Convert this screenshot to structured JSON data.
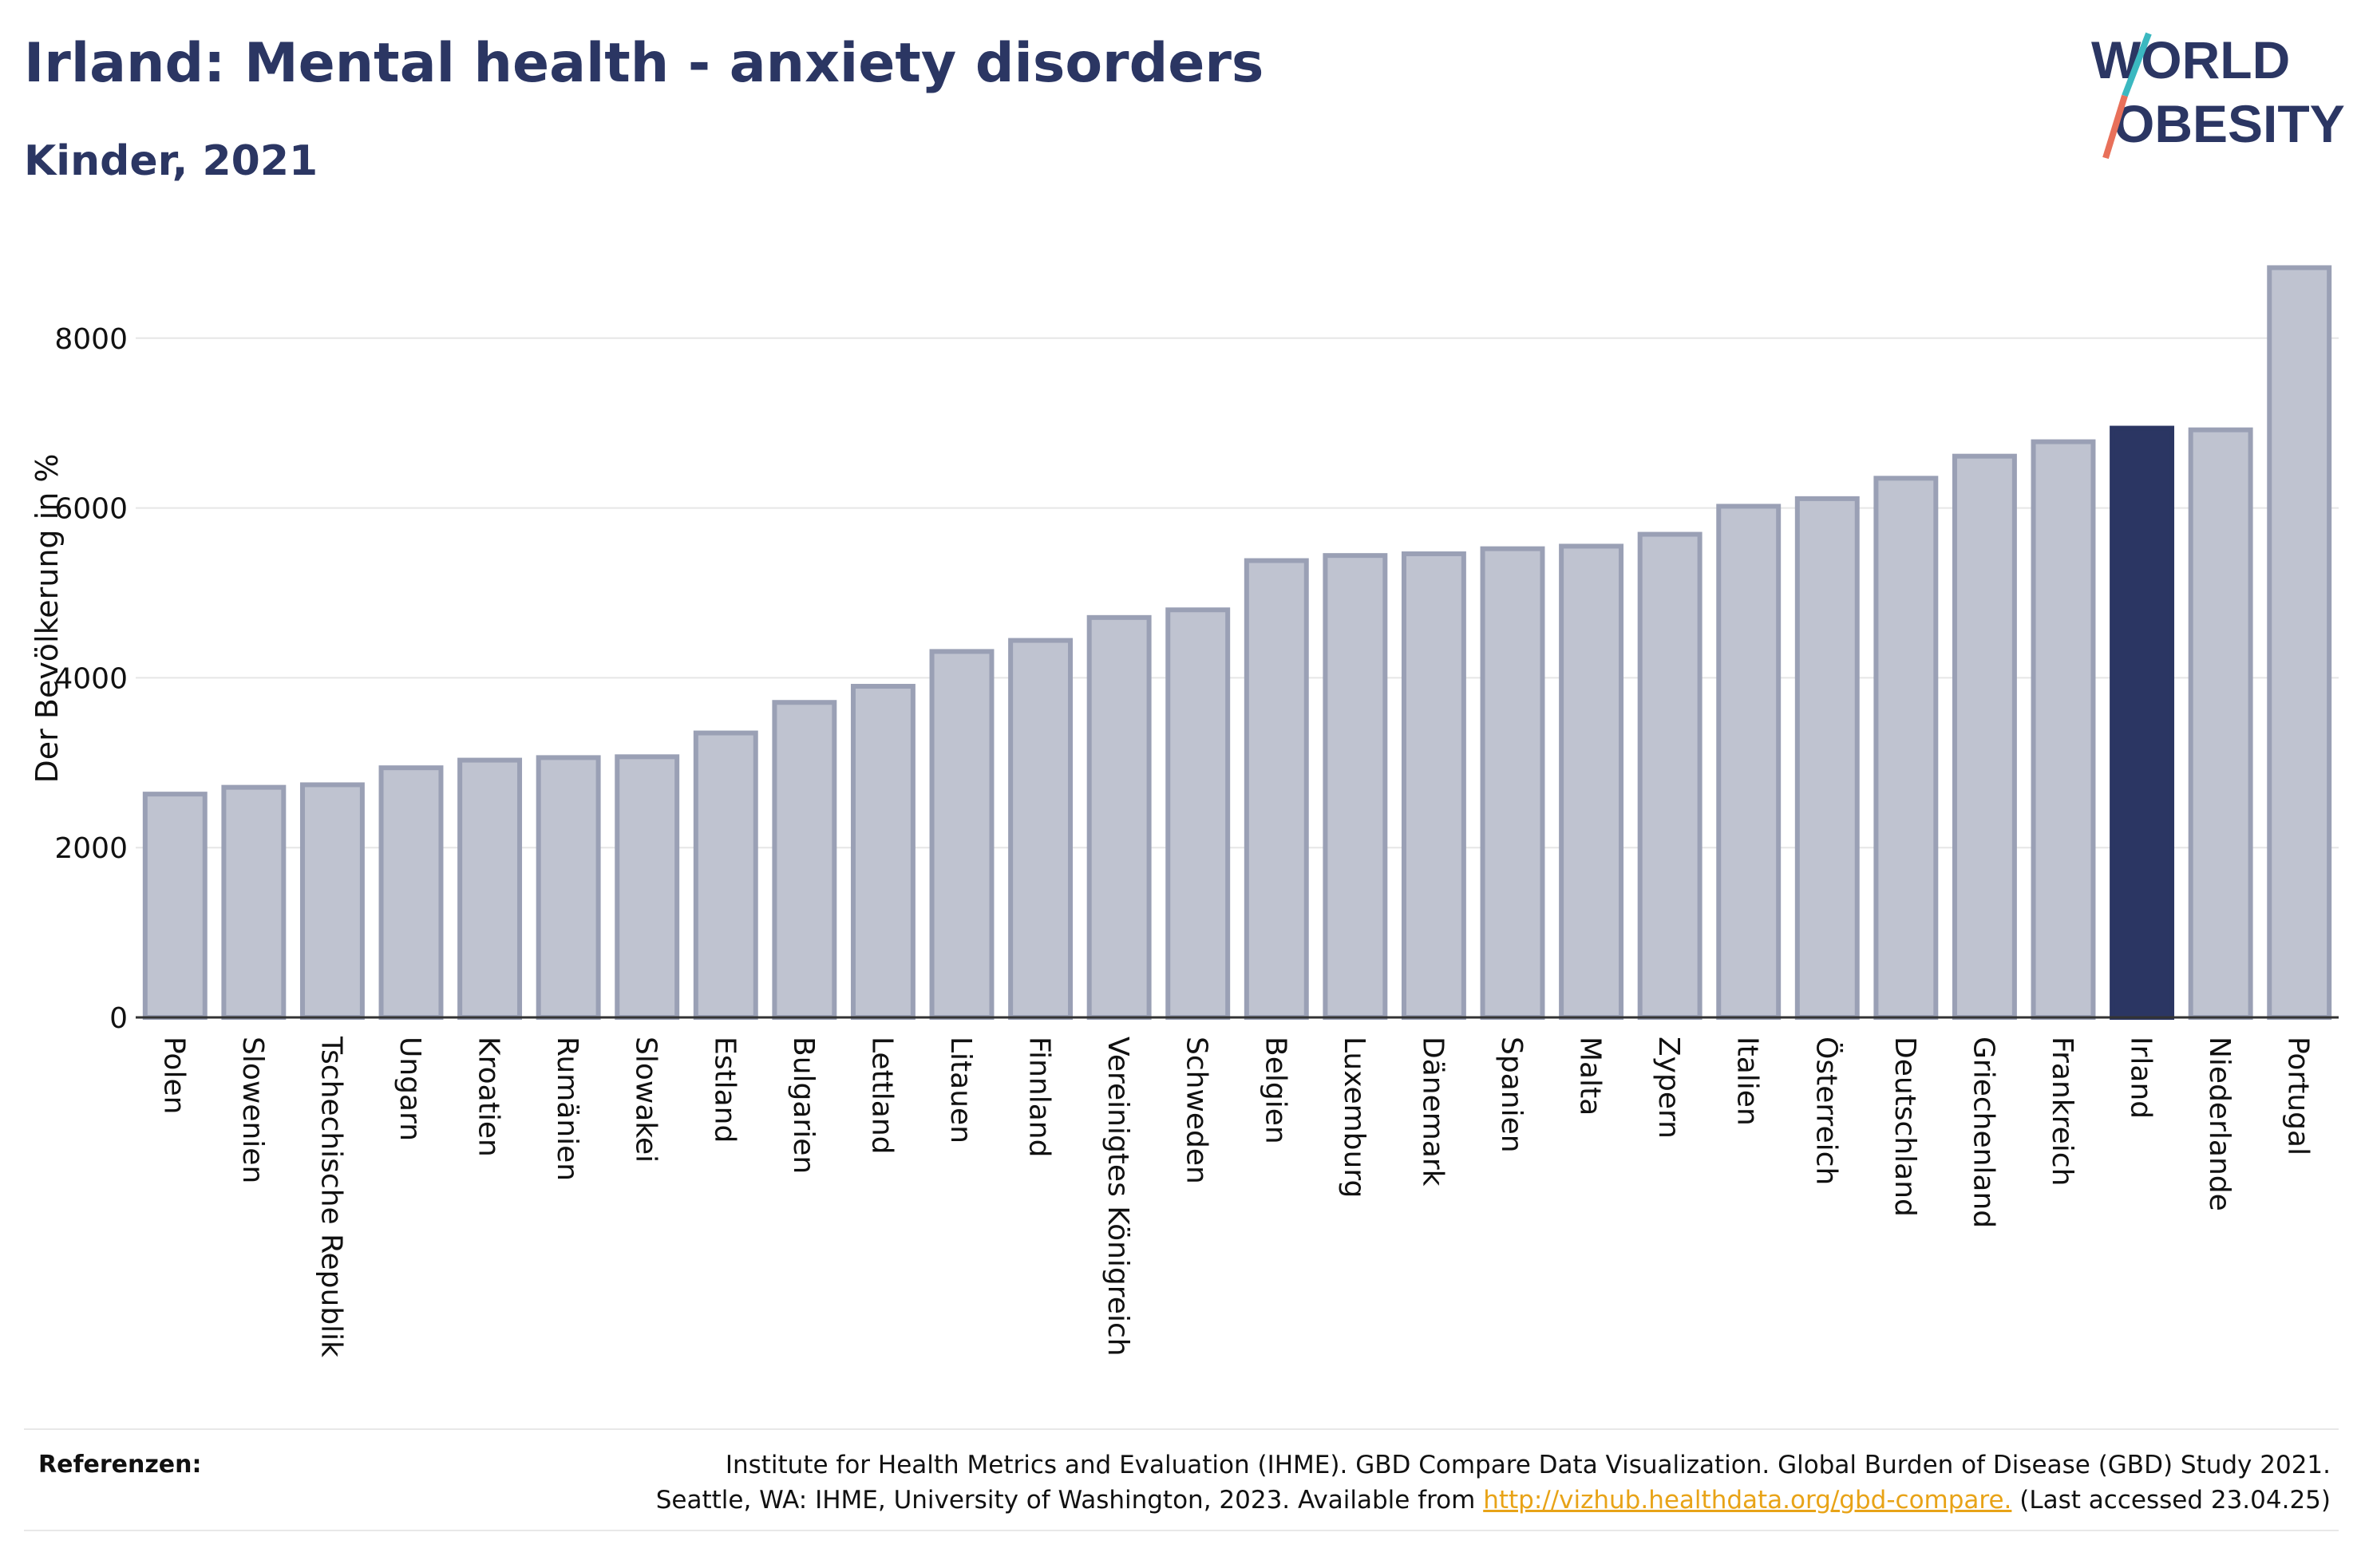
{
  "header": {
    "title": "Irland: Mental health - anxiety disorders",
    "subtitle": "Kinder, 2021"
  },
  "logo": {
    "line1": "WORLD",
    "line2": "OBESITY"
  },
  "colors": {
    "highlight": "#2b3663",
    "bar_fill": "#bfc3d0",
    "bar_stroke": "#9aa0b5",
    "grid": "#e6e6e6",
    "accent_teal": "#3bb8c0",
    "accent_red": "#e8705a"
  },
  "chart_data": {
    "type": "bar",
    "title": "Irland: Mental health - anxiety disorders",
    "subtitle": "Kinder, 2021",
    "ylabel": "Der Bevölkerung in %",
    "xlabel": "",
    "ylim": [
      0,
      8900
    ],
    "yticks": [
      0,
      2000,
      4000,
      6000,
      8000
    ],
    "grid": true,
    "highlight": "Irland",
    "categories": [
      "Polen",
      "Slowenien",
      "Tschechische Republik",
      "Ungarn",
      "Kroatien",
      "Rumänien",
      "Slowakei",
      "Estland",
      "Bulgarien",
      "Lettland",
      "Litauen",
      "Finnland",
      "Vereinigtes Königreich",
      "Schweden",
      "Belgien",
      "Luxemburg",
      "Dänemark",
      "Spanien",
      "Malta",
      "Zypern",
      "Italien",
      "Österreich",
      "Deutschland",
      "Griechenland",
      "Frankreich",
      "Irland",
      "Niederlande",
      "Portugal"
    ],
    "values": [
      2630,
      2710,
      2740,
      2940,
      3030,
      3060,
      3070,
      3350,
      3710,
      3900,
      4310,
      4440,
      4710,
      4800,
      5380,
      5440,
      5460,
      5520,
      5550,
      5690,
      6020,
      6110,
      6350,
      6610,
      6780,
      6940,
      6920,
      8830
    ]
  },
  "references": {
    "label": "Referenzen:",
    "line1": "Institute for Health Metrics and Evaluation (IHME). GBD Compare Data Visualization. Global Burden of Disease (GBD) Study 2021.",
    "line2_prefix": "Seattle, WA: IHME, University of Washington, 2023. Available from",
    "link": "http://vizhub.healthdata.org/gbd-compare.",
    "line2_suffix": "(Last accessed 23.04.25)"
  }
}
